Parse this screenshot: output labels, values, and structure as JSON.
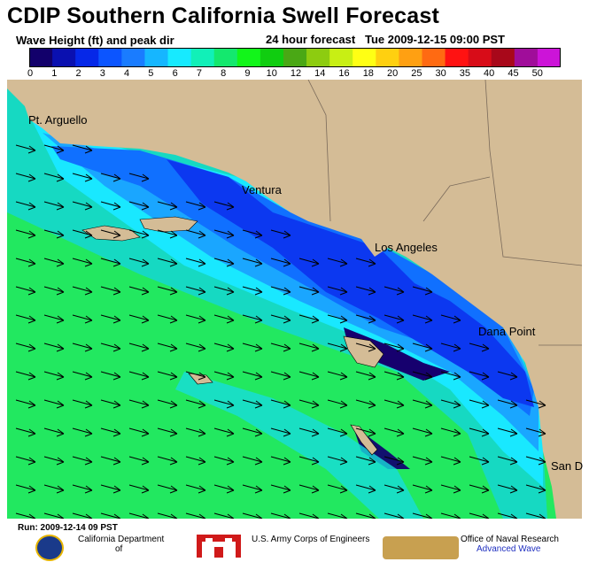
{
  "header": {
    "title": "CDIP Southern California Swell Forecast",
    "subtitle_left": "Wave Height (ft) and peak dir",
    "subtitle_right": "24 hour forecast   Tue 2009-12-15 09:00 PST"
  },
  "legend": {
    "ticks": [
      "0",
      "1",
      "2",
      "3",
      "4",
      "5",
      "6",
      "7",
      "8",
      "9",
      "10",
      "12",
      "14",
      "16",
      "18",
      "20",
      "25",
      "30",
      "35",
      "40",
      "45",
      "50"
    ],
    "colors": [
      "#12006b",
      "#0a10b0",
      "#0628e8",
      "#0c55ff",
      "#1a7cff",
      "#16b6ff",
      "#17eaff",
      "#11f0b8",
      "#14e86e",
      "#12f51a",
      "#10cd10",
      "#4aa815",
      "#8dcc10",
      "#c8ef14",
      "#ffff14",
      "#ffd010",
      "#ffa012",
      "#ff6a12",
      "#ff1212",
      "#d80c18",
      "#a8081a",
      "#a00d9a",
      "#cc14d8"
    ]
  },
  "map": {
    "places": {
      "pt_arguello": "Pt. Arguello",
      "ventura": "Ventura",
      "los_angeles": "Los Angeles",
      "dana_point": "Dana Point",
      "san_diego": "San D"
    },
    "land_color": "#d4bc96",
    "ocean_base_color": "#22e860",
    "arrow_direction": "WNW to ESE"
  },
  "footer": {
    "run_label": "Run: 2009-12-14 09 PST",
    "org1": "California Department of",
    "org1_line1": "California Department",
    "org1_line2": "of",
    "org2": "U.S. Army Corps of Engineers",
    "org3_line1": "Office of Naval Research",
    "org3_line2": "Advanced Wave"
  }
}
